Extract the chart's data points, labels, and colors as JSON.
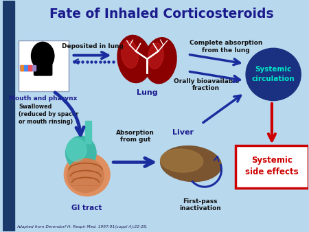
{
  "title": "Fate of Inhaled Corticosteroids",
  "title_color": "#1a1a8c",
  "bg_color": "#b8d8ee",
  "citation": "Adapted from Derendorf H. Respir Med. 1997;91(suppl A):22-28.",
  "labels": {
    "mouth_pharynx": "Mouth and pharynx",
    "lung": "Lung",
    "deposited": "Deposited in lung",
    "complete_abs": "Complete absorption\nfrom the lung",
    "systemic_circ": "Systemic\ncirculation",
    "orally_bio": "Orally bioavailable\nfraction",
    "swallowed": "Swallowed\n(reduced by spacer\nor mouth rinsing)",
    "gi_tract": "GI tract",
    "absorption_gut": "Absorption\nfrom gut",
    "liver": "Liver",
    "first_pass": "First-pass\ninactivation",
    "systemic_effects": "Systemic\nside effects"
  },
  "colors": {
    "dark_blue": "#1a1a8c",
    "arrow_blue": "#1a2d9e",
    "lung_dark": "#8b0000",
    "lung_mid": "#a01010",
    "lung_light": "#cc2222",
    "liver_dark": "#7a5530",
    "liver_light": "#a07840",
    "gi_teal": "#40b8a8",
    "gi_peach": "#e09060",
    "gi_peach2": "#d08050",
    "gi_line": "#aa5522",
    "systemic_circle": "#1a3080",
    "systemic_text": "#00e8c8",
    "side_effects_border": "#cc0000",
    "side_effects_text": "#cc0000",
    "side_effects_bg": "#ffffff",
    "red_arrow": "#cc0000",
    "left_bar": "#1a3a6c",
    "white": "#ffffff",
    "black": "#000000",
    "label_blue": "#1a1a8c",
    "label_dark": "#111111"
  },
  "layout": {
    "xlim": [
      0,
      10
    ],
    "ylim": [
      0,
      7.5
    ],
    "left_bar_width": 0.38
  }
}
